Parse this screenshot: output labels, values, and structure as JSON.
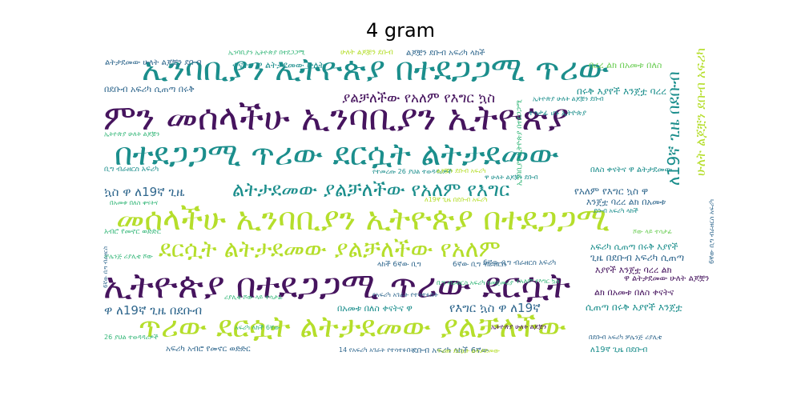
{
  "figure": {
    "title": "4 gram"
  },
  "palette": {
    "dark_purple": "#46145e",
    "teal": "#1b8e8c",
    "green": "#35b779",
    "yellow_green": "#b5de2b",
    "blue": "#31688e",
    "light_green": "#6ece58"
  },
  "cloud": {
    "words": [
      {
        "text": "ኢንባቢያን ኢትዮጵያ በተደጋጋሚ ጥሪው",
        "color": "#1b8e8c"
      },
      {
        "text": "ምን መሰላችሁ ኢንባቢያን ኢትዮጵያ",
        "color": "#46145e"
      },
      {
        "text": "በተደጋጋሚ ጥሪው ደርሷት ልትታደመው",
        "color": "#1b8e8c"
      },
      {
        "text": "መሰላችሁ ኢንባቢያን ኢትዮጵያ በተደጋጋሚ",
        "color": "#b5de2b"
      },
      {
        "text": "ደርሷት ልትታደመው ያልቻለችው የአለም",
        "color": "#b5de2b"
      },
      {
        "text": "ኢትዮጵያ በተደጋጋሚ ጥሪው ደርሷት",
        "color": "#46145e"
      },
      {
        "text": "ጥሪው ደርሷት ልትታደመው ያልቻለችው",
        "color": "#b5de2b"
      },
      {
        "text": "ያልቻለችው የአለም የእግር ኳስ",
        "color": "#46145e"
      },
      {
        "text": "ልትታደመው ያልቻለችው የአለም የእግር",
        "color": "#1b8e8c"
      },
      {
        "text": "ኳስ ዋ ለ19ኛ ጊዜ",
        "color": "#31688e"
      },
      {
        "text": "ዋ ለ19ኛ ጊዜ በደቡብ",
        "color": "#31688e"
      },
      {
        "text": "የእግር ኳስ ዋ ለ19ኛ",
        "color": "#31688e"
      },
      {
        "text": "ኢትዮጵያ ሁለት ልጆቿን",
        "color": "#46145e"
      },
      {
        "text": "በደቡብ አፍሪካ ሲጠጣ በሩቅ",
        "color": "#31688e"
      },
      {
        "text": "በሩቅ እያየች እንጀቷ ባረረ",
        "color": "#1b8e8c"
      },
      {
        "text": "አፍሪካ ሲጠጣ በሩቅ እያየች",
        "color": "#1b8e8c"
      },
      {
        "text": "ጊዜ በደቡብ አፍሪካ ሲጠጣ",
        "color": "#31688e"
      },
      {
        "text": "እያየች እንጀቷ ባረረ ልክ",
        "color": "#46145e"
      },
      {
        "text": "የአለም የእግር ኳስ ዋ",
        "color": "#31688e"
      },
      {
        "text": "እንጀቷ ባረረ ልክ በአመቱ",
        "color": "#31688e"
      },
      {
        "text": "ሲጠጣ በሩቅ እያየች እንጀቷ",
        "color": "#1b8e8c"
      },
      {
        "text": "ልክ በአመቱ በለስ ቀናትና",
        "color": "#46145e"
      },
      {
        "text": "በአመቱ በለስ ቀናትና ዋ",
        "color": "#1b8e8c"
      },
      {
        "text": "ቀናትና ዋ ልትታደመው ሁለት",
        "color": "#1b8e8c"
      },
      {
        "text": "ባረረ ልክ በአመቱ በለስ",
        "color": "#6ece58"
      },
      {
        "text": "በለስ ቀናትና ዋ ልትታደመው",
        "color": "#1b8e8c"
      },
      {
        "text": "ልጆቿን ደቡብ አፍሪካ ላከች",
        "color": "#31688e"
      },
      {
        "text": "አፍሪካ አብሮ የመኖር ወድድር",
        "color": "#31688e"
      },
      {
        "text": "ደቡብ አፍሪካ ላከች 6ኛው",
        "color": "#31688e"
      },
      {
        "text": "ልትታደመው ሁለት ልጆቿን ደቡብ",
        "color": "#31688e"
      },
      {
        "text": "14 የአፍሪካ አገራት የተሳተፉበት",
        "color": "#31688e"
      },
      {
        "text": "ለ19ኛ ጊዜ በደቡብ",
        "color": "#1b8e8c"
      },
      {
        "text": "ዋ ልትታደመው ሁለት ልጆቿን",
        "color": "#46145e"
      },
      {
        "text": "6ኛው ቢግ ብራዘርስ አፍሪካ",
        "color": "#31688e"
      },
      {
        "text": "በደቡብ አፍሪካ ቻሌንጅ ሪያሊቲ",
        "color": "#31688e"
      },
      {
        "text": "የተመረጡ 26 ያህል ተወዳዳሪዎች",
        "color": "#1b8e8c"
      },
      {
        "text": "ኢትዮጵያ ሁለት ልጆቿን ደቡብ",
        "color": "#1b8e8c"
      },
      {
        "text": "ኢንባቢያን ኢትዮጵያ በተደጋጋሚ",
        "color": "#35b779"
      },
      {
        "text": "ሁለት ልጆቿን ደቡብ አፍሪካ",
        "color": "#b5de2b"
      },
      {
        "text": "ለ19ኛ ጊዜ በደቡብ አፍሪካ",
        "color": "#b5de2b"
      },
      {
        "text": "ሪያሊቲ ሾው ላይ ተሳታፊ",
        "color": "#35b779"
      },
      {
        "text": "ቢግ ብራዘርስ አፍሪካ የመጀመሪያ",
        "color": "#35b779"
      },
      {
        "text": "ዋ ሁለት ልጆቿን ደቡብ",
        "color": "#1b8e8c"
      },
      {
        "text": "ሁለት ልጆቿን ደቡብ",
        "color": "#b5de2b"
      },
      {
        "text": "26 ያህል ተወዳዳሪዎች",
        "color": "#35b779"
      },
      {
        "text": "አፍሪካ ላከች 6ኛው",
        "color": "#35b779"
      },
      {
        "text": "በአመቱ በለስ ቀናትና",
        "color": "#35b779"
      },
      {
        "text": "ደቡብ አፍሪካ ላከች",
        "color": "#1b8e8c"
      },
      {
        "text": "ቢግ ብራዘርስ አፍሪካ",
        "color": "#1b8e8c"
      },
      {
        "text": "ተሳታፊ ሆኑ ኢትዮጵያ",
        "color": "#1b8e8c"
      },
      {
        "text": "ልጆቿን ደቡብ አፍሪካ",
        "color": "#b5de2b"
      },
      {
        "text": "ቻሌንጅ ሪያሊቲ ሾው",
        "color": "#35b779"
      },
      {
        "text": "ኢትዮጵያ ሁለት ልጆቿን",
        "color": "#35b779"
      },
      {
        "text": "የአፍሪካ አገራት የተሳተፉበት",
        "color": "#31688e"
      },
      {
        "text": "ለ19ኛ ጊዜ በደቡብ",
        "color": "#1b8e8c"
      },
      {
        "text": "አብሮ የመኖር ወድድር",
        "color": "#35b779"
      },
      {
        "text": "ሾው ላይ ተሳታፊ",
        "color": "#6ece58"
      },
      {
        "text": "የአለም የእግር ኳስ",
        "color": "#35b779"
      },
      {
        "text": "ላከች 6ኛው ቢግ",
        "color": "#31688e"
      },
      {
        "text": "6ኛው ቢግ ብራዘርስ",
        "color": "#31688e"
      },
      {
        "text": "ጥሪው ደርሷት ልትታደመው",
        "color": "#b5de2b"
      }
    ]
  }
}
